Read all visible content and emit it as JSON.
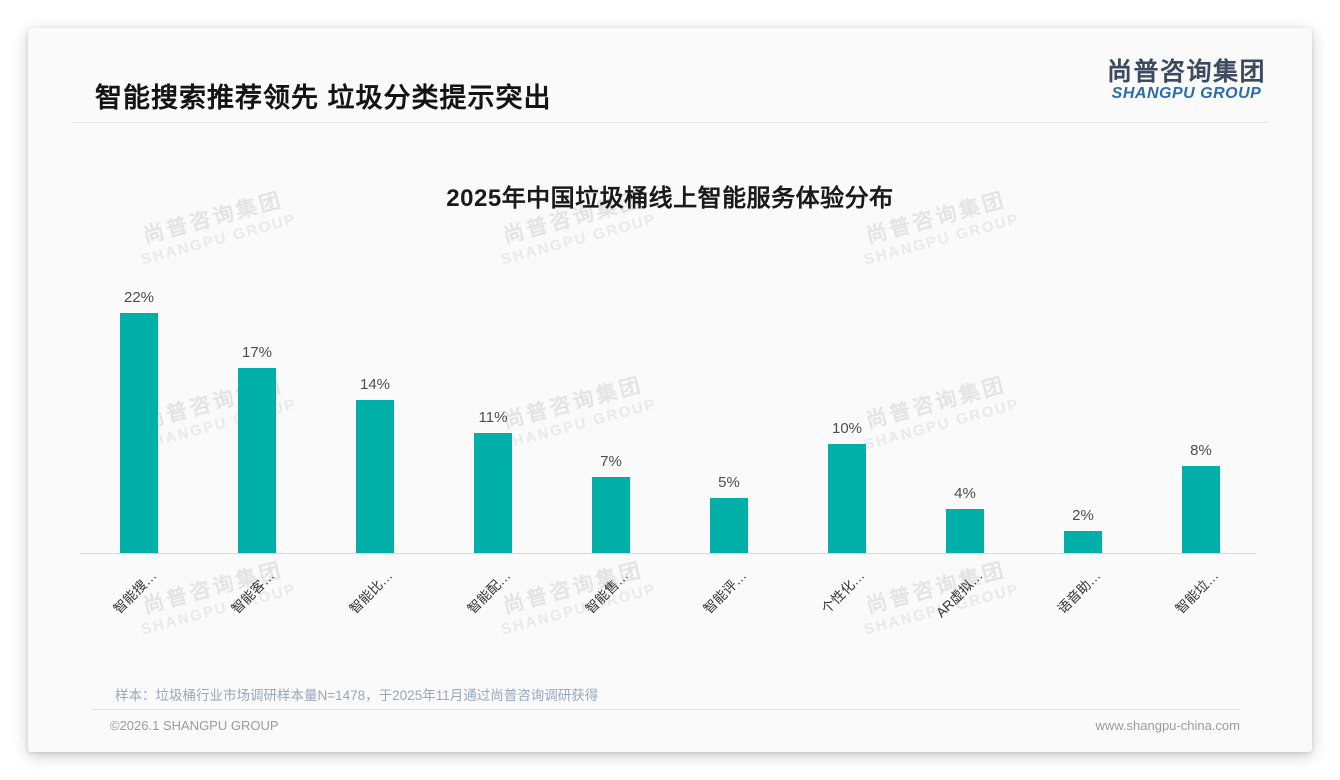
{
  "page": {
    "header_title": "智能搜索推荐领先 垃圾分类提示突出",
    "logo": {
      "cn": "尚普咨询集团",
      "en": "SHANGPU GROUP"
    },
    "watermark": {
      "line1": "尚普咨询集团",
      "line2": "SHANGPU GROUP"
    },
    "sample_note": "样本：垃圾桶行业市场调研样本量N=1478，于2025年11月通过尚普咨询调研获得",
    "footer_left": "©2026.1 SHANGPU GROUP",
    "footer_right": "www.shangpu-china.com",
    "colors": {
      "accent": "#00B0A8",
      "logo_blue": "#2E6CA8",
      "logo_dark": "#3B4A5E",
      "axis": "#D9D9D9"
    }
  },
  "chart_data": {
    "type": "bar",
    "title": "2025年中国垃圾桶线上智能服务体验分布",
    "categories": [
      "智能搜…",
      "智能客…",
      "智能比…",
      "智能配…",
      "智能售…",
      "智能评…",
      "个性化…",
      "AR虚拟…",
      "语音助…",
      "智能垃…"
    ],
    "values": [
      22,
      17,
      14,
      11,
      7,
      5,
      10,
      4,
      2,
      8
    ],
    "value_labels": [
      "22%",
      "17%",
      "14%",
      "11%",
      "7%",
      "5%",
      "10%",
      "4%",
      "2%",
      "8%"
    ],
    "unit": "%",
    "bar_color": "#00B0A8",
    "xlabel": "",
    "ylabel": "",
    "ylim": [
      0,
      24
    ],
    "grid": false,
    "legend": "none",
    "x_label_rotation": 45
  }
}
